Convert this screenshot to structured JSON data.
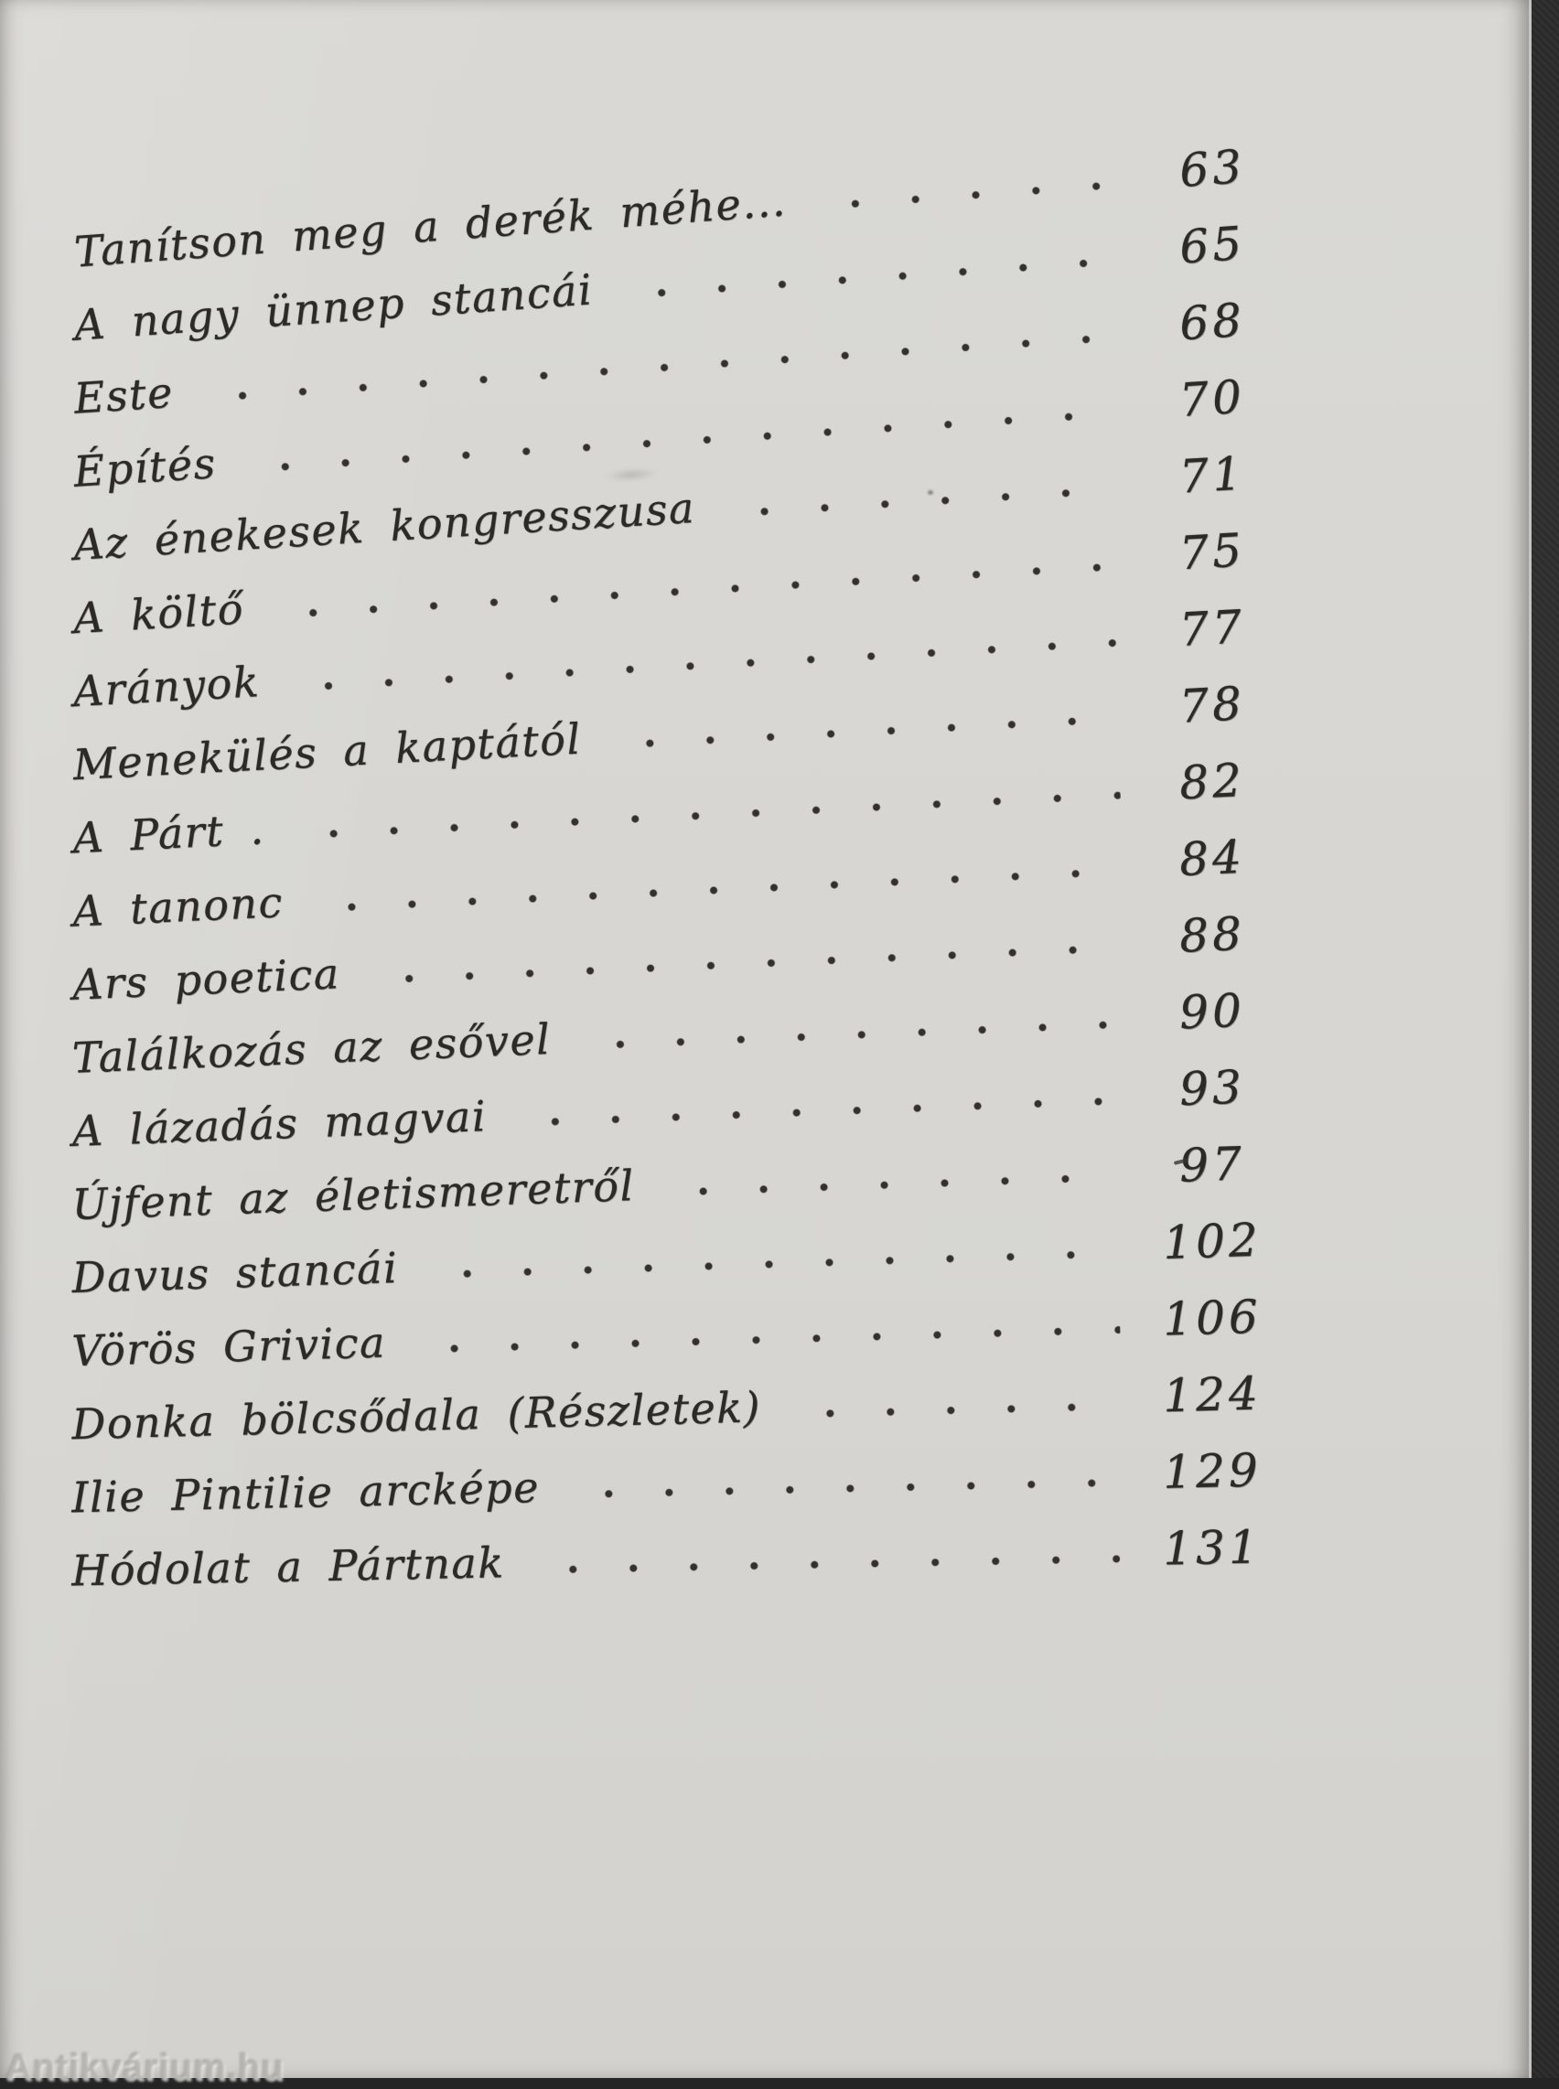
{
  "page": {
    "kind": "scanned-book-table-of-contents",
    "language": "Hungarian",
    "watermark": "Antikvárium.hu",
    "paper_color": "#d7d6d2",
    "ink_color": "#2c2a26",
    "backdrop_color": "#2a2a2a"
  },
  "toc": {
    "entries": [
      {
        "title": "Tanítson meg a derék méhe...",
        "page": "63"
      },
      {
        "title": "A nagy ünnep stancái",
        "page": "65"
      },
      {
        "title": "Este",
        "page": "68"
      },
      {
        "title": "Építés",
        "page": "70"
      },
      {
        "title": "Az énekesek kongresszusa",
        "page": "71"
      },
      {
        "title": "A költő",
        "page": "75"
      },
      {
        "title": "Arányok",
        "page": "77"
      },
      {
        "title": "Menekülés a kaptától",
        "page": "78"
      },
      {
        "title": "A Párt .",
        "page": "82"
      },
      {
        "title": "A  tanonc",
        "page": "84"
      },
      {
        "title": "Ars poetica",
        "page": "88"
      },
      {
        "title": "Találkozás az esővel",
        "page": "90"
      },
      {
        "title": "A lázadás magvai",
        "page": "93"
      },
      {
        "title": "Újfent az életismeretről",
        "page": "97"
      },
      {
        "title": "Davus stancái",
        "page": "102"
      },
      {
        "title": "Vörös Grivica",
        "page": "106"
      },
      {
        "title": "Donka bölcsődala (Részletek)",
        "page": "124"
      },
      {
        "title": "Ilie Pintilie arcképe",
        "page": "129"
      },
      {
        "title": "Hódolat a Pártnak",
        "page": "131"
      }
    ]
  }
}
